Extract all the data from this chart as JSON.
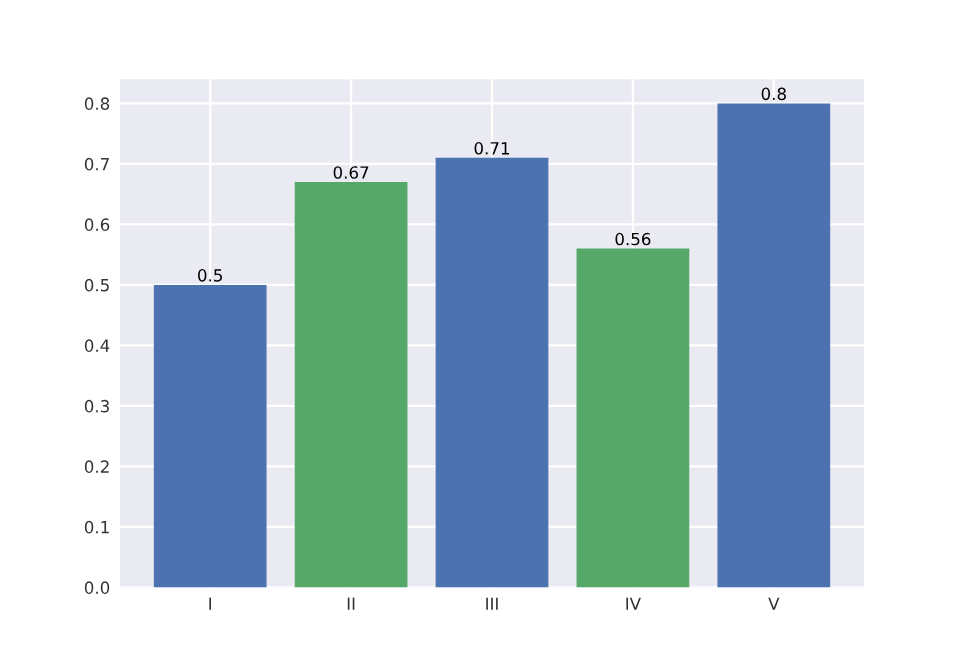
{
  "chart_data": {
    "type": "bar",
    "categories": [
      "I",
      "II",
      "III",
      "IV",
      "V"
    ],
    "values": [
      0.5,
      0.67,
      0.71,
      0.56,
      0.8
    ],
    "colors": [
      "#4c72b0",
      "#55a868",
      "#4c72b0",
      "#55a868",
      "#4c72b0"
    ],
    "data_labels": true,
    "ylim": [
      0,
      0.84
    ],
    "yticks": [
      {
        "value": 0,
        "label": "0.0"
      },
      0.1,
      0.2,
      0.3,
      0.4,
      0.5,
      0.6,
      0.7,
      0.8
    ],
    "grid": true
  }
}
